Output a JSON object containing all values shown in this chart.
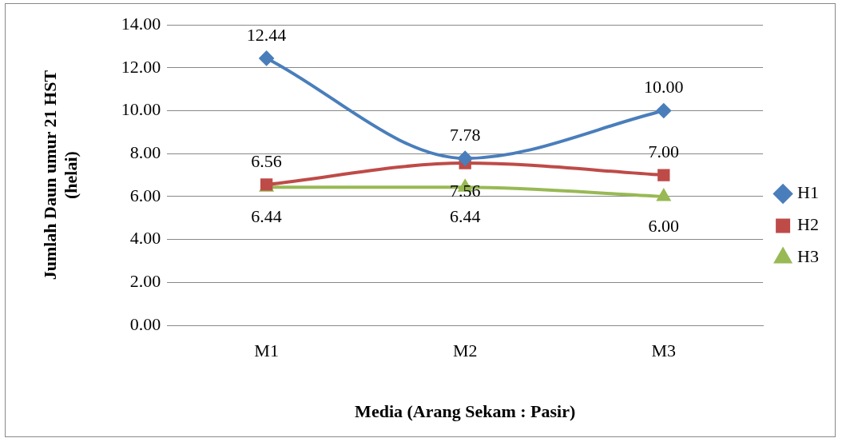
{
  "chart_data": {
    "type": "line",
    "xlabel": "Media (Arang Sekam : Pasir)",
    "ylabel": "Jumlah Daun umur 21 HST (helai)",
    "categories": [
      "M1",
      "M2",
      "M3"
    ],
    "series": [
      {
        "name": "H1",
        "color": "#4a7ebb",
        "marker": "diamond",
        "values": [
          12.44,
          7.78,
          10.0
        ],
        "value_labels": [
          "12.44",
          "7.78",
          "10.00"
        ]
      },
      {
        "name": "H2",
        "color": "#be4b48",
        "marker": "square",
        "values": [
          6.56,
          7.56,
          7.0
        ],
        "value_labels": [
          "6.56",
          "7.56",
          "7.00"
        ]
      },
      {
        "name": "H3",
        "color": "#98b954",
        "marker": "triangle",
        "values": [
          6.44,
          6.44,
          6.0
        ],
        "value_labels": [
          "6.44",
          "6.44",
          "6.00"
        ]
      }
    ],
    "ylim": [
      0,
      14
    ],
    "yticks": [
      {
        "value": 0,
        "label": "0.00"
      },
      {
        "value": 2,
        "label": "2.00"
      },
      {
        "value": 4,
        "label": "4.00"
      },
      {
        "value": 6,
        "label": "6.00"
      },
      {
        "value": 8,
        "label": "8.00"
      },
      {
        "value": 10,
        "label": "10.00"
      },
      {
        "value": 12,
        "label": "12.00"
      },
      {
        "value": 14,
        "label": "14.00"
      }
    ],
    "grid": "y",
    "legend": "right"
  }
}
